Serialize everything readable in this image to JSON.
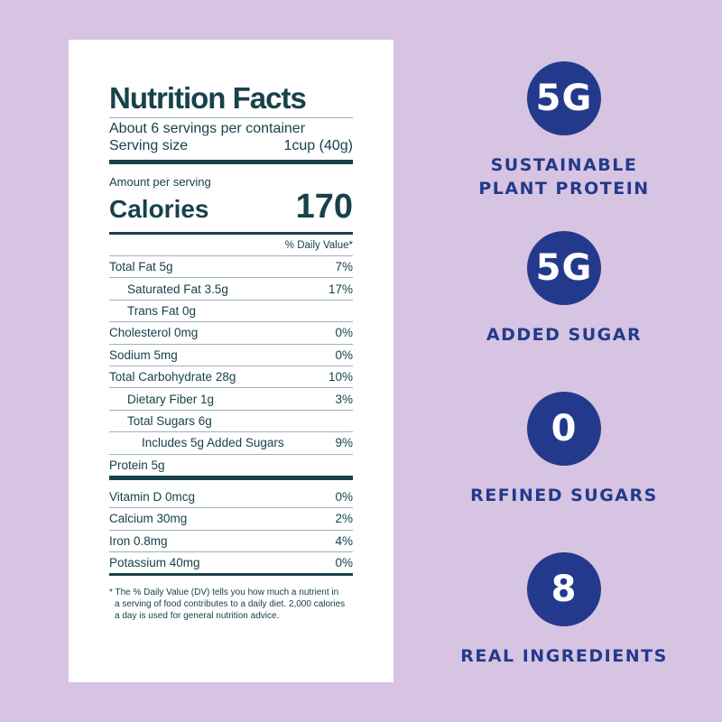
{
  "nutrition": {
    "title": "Nutrition Facts",
    "servings_per_container": "About 6 servings per container",
    "serving_size_label": "Serving size",
    "serving_size_value": "1cup (40g)",
    "amount_per_serving": "Amount per serving",
    "calories_label": "Calories",
    "calories_value": "170",
    "daily_value_header": "% Daily Value*",
    "rows": [
      {
        "label": "Total Fat 5g",
        "dv": "7%"
      },
      {
        "label": "Saturated Fat 3.5g",
        "dv": "17%"
      },
      {
        "label": "Trans Fat 0g",
        "dv": ""
      },
      {
        "label": "Cholesterol 0mg",
        "dv": "0%"
      },
      {
        "label": "Sodium 5mg",
        "dv": "0%"
      },
      {
        "label": "Total Carbohydrate 28g",
        "dv": "10%"
      },
      {
        "label": "Dietary Fiber 1g",
        "dv": "3%"
      },
      {
        "label": "Total Sugars 6g",
        "dv": ""
      },
      {
        "label": "Includes 5g Added Sugars",
        "dv": "9%"
      },
      {
        "label": "Protein 5g",
        "dv": ""
      }
    ],
    "vitamins": [
      {
        "label": "Vitamin D 0mcg",
        "dv": "0%"
      },
      {
        "label": "Calcium 30mg",
        "dv": "2%"
      },
      {
        "label": "Iron 0.8mg",
        "dv": "4%"
      },
      {
        "label": "Potassium 40mg",
        "dv": "0%"
      }
    ],
    "footnote": [
      "* The % Daily Value (DV) tells you how much a nutrient in",
      "a serving of food contributes to a daily diet. 2,000 calories",
      "a day is used for general nutrition advice."
    ]
  },
  "badges": [
    {
      "value": "5G",
      "label_lines": [
        "SUSTAINABLE",
        "PLANT PROTEIN"
      ]
    },
    {
      "value": "5G",
      "label_lines": [
        "ADDED SUGAR"
      ]
    },
    {
      "value": "0",
      "label_lines": [
        "REFINED SUGARS"
      ]
    },
    {
      "value": "8",
      "label_lines": [
        "REAL INGREDIENTS"
      ]
    }
  ],
  "colors": {
    "background": "#d7c4e2",
    "label_text": "#17424a",
    "badge_blue": "#233a8c"
  }
}
